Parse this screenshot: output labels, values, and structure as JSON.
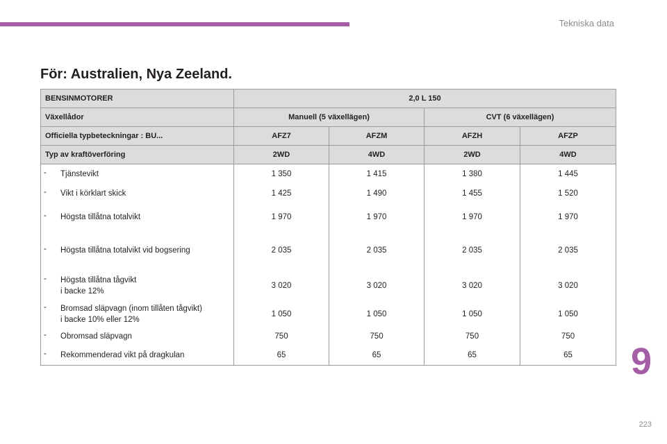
{
  "header": {
    "section_label": "Tekniska data"
  },
  "page_title": "För: Australien, Nya Zeeland.",
  "table": {
    "engine_label": "BENSINMOTORER",
    "engine_value": "2,0 L 150",
    "gearbox_label": "Växellådor",
    "gearboxes": [
      "Manuell (5 växellägen)",
      "CVT (6 växellägen)"
    ],
    "typecode_label": "Officiella typbeteckningar : BU...",
    "typecodes": [
      "AFZ7",
      "AFZM",
      "AFZH",
      "AFZP"
    ],
    "drive_label": "Typ av kraftöverföring",
    "drives": [
      "2WD",
      "4WD",
      "2WD",
      "4WD"
    ],
    "rows": [
      {
        "dash": "-",
        "label": [
          "Tjänstevikt"
        ],
        "values": [
          "1 350",
          "1 415",
          "1 380",
          "1 445"
        ]
      },
      {
        "dash": "-",
        "label": [
          "Vikt i körklart skick"
        ],
        "values": [
          "1 425",
          "1 490",
          "1 455",
          "1 520"
        ]
      },
      {
        "dash": "-",
        "label": [
          "Högsta tillåtna totalvikt"
        ],
        "values": [
          "1 970",
          "1 970",
          "1 970",
          "1 970"
        ]
      },
      {
        "dash": "-",
        "label": [
          "Högsta tillåtna totalvikt vid bogsering"
        ],
        "values": [
          "2 035",
          "2 035",
          "2 035",
          "2 035"
        ]
      },
      {
        "dash": "-",
        "label": [
          "Högsta tillåtna tågvikt",
          "i backe 12%"
        ],
        "values": [
          "3 020",
          "3 020",
          "3 020",
          "3 020"
        ]
      },
      {
        "dash": "-",
        "label": [
          "Bromsad släpvagn (inom tillåten tågvikt)",
          "i backe 10% eller 12%"
        ],
        "values": [
          "1 050",
          "1 050",
          "1 050",
          "1 050"
        ]
      },
      {
        "dash": "-",
        "label": [
          "Obromsad släpvagn"
        ],
        "values": [
          "750",
          "750",
          "750",
          "750"
        ]
      },
      {
        "dash": "-",
        "label": [
          "Rekommenderad vikt på dragkulan"
        ],
        "values": [
          "65",
          "65",
          "65",
          "65"
        ]
      }
    ]
  },
  "chapter_number": "9",
  "page_number": "223"
}
